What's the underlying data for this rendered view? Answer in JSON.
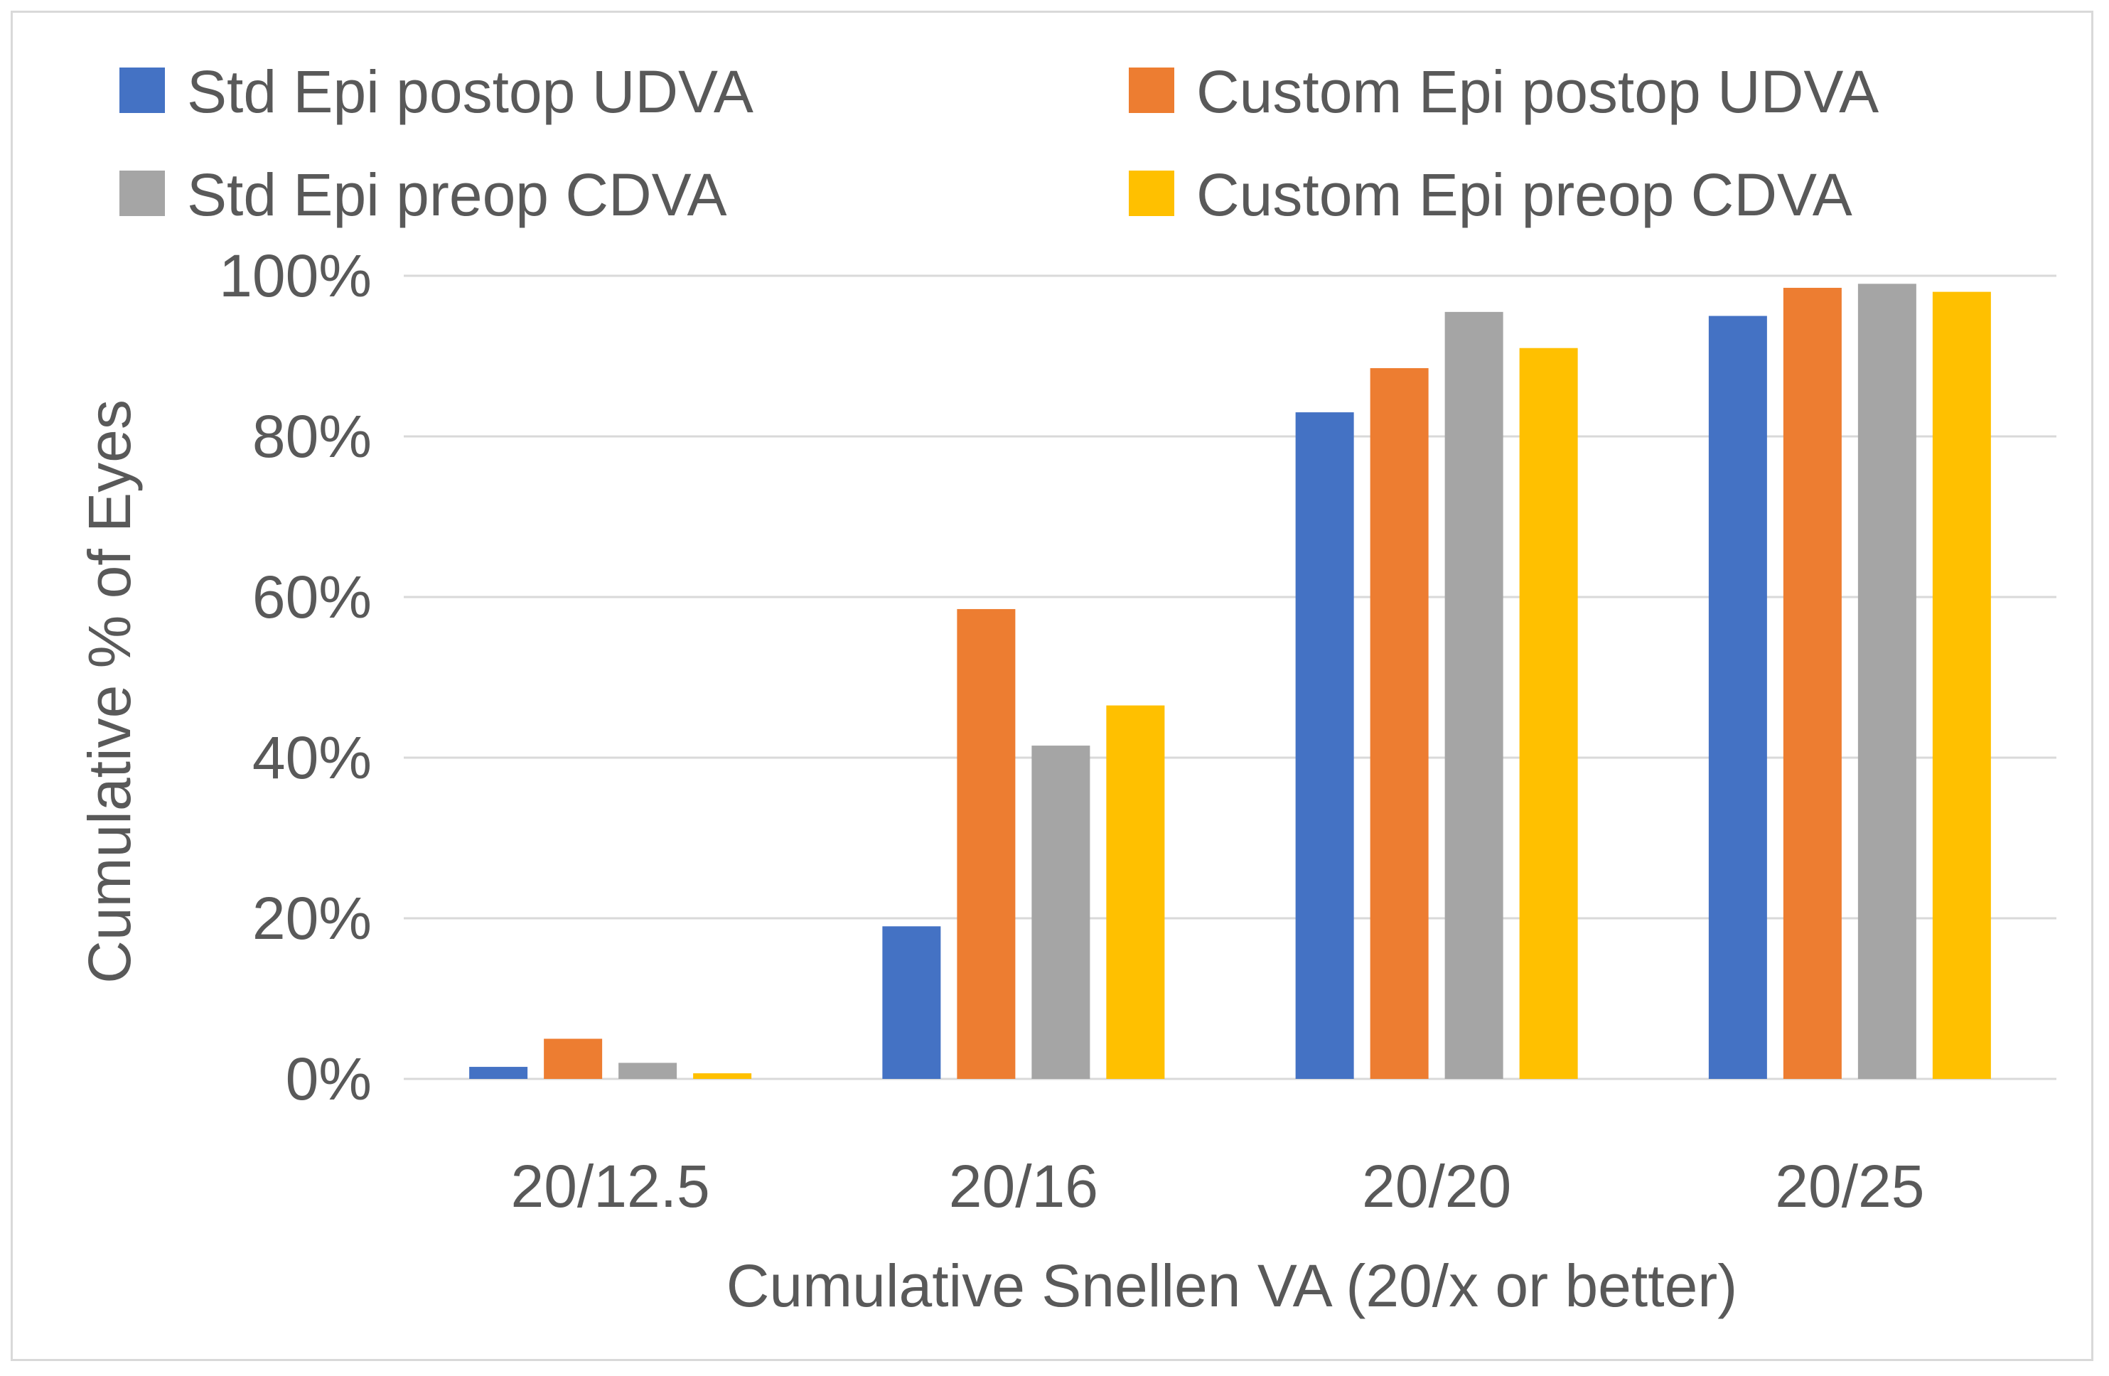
{
  "chart_data": {
    "type": "bar",
    "title": "",
    "xlabel": "Cumulative Snellen VA (20/x or better)",
    "ylabel": "Cumulative % of Eyes",
    "categories": [
      "20/12.5",
      "20/16",
      "20/20",
      "20/25"
    ],
    "ylim": [
      0,
      100
    ],
    "yticks": [
      "0%",
      "20%",
      "40%",
      "60%",
      "80%",
      "100%"
    ],
    "ytick_values": [
      0,
      20,
      40,
      60,
      80,
      100
    ],
    "grid": true,
    "legend_position": "top",
    "series": [
      {
        "name": "Std Epi postop UDVA",
        "color": "#4472c4",
        "values": [
          1.5,
          19,
          83,
          95
        ]
      },
      {
        "name": "Custom Epi postop UDVA",
        "color": "#ed7d31",
        "values": [
          5,
          58.5,
          88.5,
          98.5
        ]
      },
      {
        "name": "Std Epi preop CDVA",
        "color": "#a5a5a5",
        "values": [
          2,
          41.5,
          95.5,
          99
        ]
      },
      {
        "name": "Custom Epi preop CDVA",
        "color": "#ffc000",
        "values": [
          0.7,
          46.5,
          91,
          98
        ]
      }
    ]
  }
}
